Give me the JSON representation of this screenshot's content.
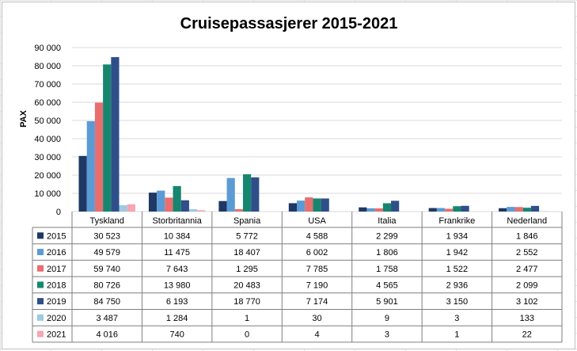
{
  "chart_data": {
    "type": "bar",
    "title": "Cruisepassasjerer 2015-2021",
    "ylabel": "PAX",
    "xlabel": "",
    "ylim": [
      0,
      90000
    ],
    "yticks": [
      "0",
      "10 000",
      "20 000",
      "30 000",
      "40 000",
      "50 000",
      "60 000",
      "70 000",
      "80 000",
      "90 000"
    ],
    "ytick_values": [
      0,
      10000,
      20000,
      30000,
      40000,
      50000,
      60000,
      70000,
      80000,
      90000
    ],
    "grid": true,
    "legend": "data-table",
    "categories": [
      "Tyskland",
      "Storbritannia",
      "Spania",
      "USA",
      "Italia",
      "Frankrike",
      "Nederland"
    ],
    "series": [
      {
        "name": "2015",
        "color": "#1f3864",
        "values": [
          30523,
          10384,
          5772,
          4588,
          2299,
          1934,
          1846
        ],
        "labels": [
          "30 523",
          "10 384",
          "5 772",
          "4 588",
          "2 299",
          "1 934",
          "1 846"
        ]
      },
      {
        "name": "2016",
        "color": "#5b9bd5",
        "values": [
          49579,
          11475,
          18407,
          6002,
          1806,
          1942,
          2552
        ],
        "labels": [
          "49 579",
          "11 475",
          "18 407",
          "6 002",
          "1 806",
          "1 942",
          "2 552"
        ]
      },
      {
        "name": "2017",
        "color": "#e96e6e",
        "values": [
          59740,
          7643,
          1295,
          7785,
          1758,
          1522,
          2477
        ],
        "labels": [
          "59 740",
          "7 643",
          "1 295",
          "7 785",
          "1 758",
          "1 522",
          "2 477"
        ]
      },
      {
        "name": "2018",
        "color": "#16866f",
        "values": [
          80726,
          13980,
          20483,
          7190,
          4565,
          2936,
          2099
        ],
        "labels": [
          "80 726",
          "13 980",
          "20 483",
          "7 190",
          "4 565",
          "2 936",
          "2 099"
        ]
      },
      {
        "name": "2019",
        "color": "#2f4f8a",
        "values": [
          84750,
          6193,
          18770,
          7174,
          5901,
          3150,
          3102
        ],
        "labels": [
          "84 750",
          "6 193",
          "18 770",
          "7 174",
          "5 901",
          "3 150",
          "3 102"
        ]
      },
      {
        "name": "2020",
        "color": "#9ecae1",
        "values": [
          3487,
          1284,
          1,
          30,
          9,
          3,
          133
        ],
        "labels": [
          "3 487",
          "1 284",
          "1",
          "30",
          "9",
          "3",
          "133"
        ]
      },
      {
        "name": "2021",
        "color": "#f4a6b4",
        "values": [
          4016,
          740,
          0,
          4,
          3,
          1,
          22
        ],
        "labels": [
          "4 016",
          "740",
          "0",
          "4",
          "3",
          "1",
          "22"
        ]
      }
    ]
  }
}
